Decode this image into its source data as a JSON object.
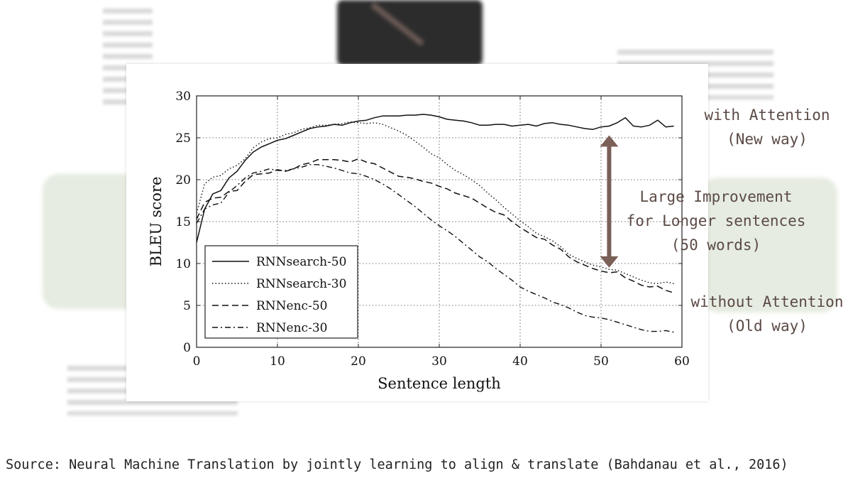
{
  "slide": {
    "annotations": {
      "with_attention": [
        "with Attention",
        "(New way)"
      ],
      "improvement": [
        "Large Improvement",
        "for Longer sentences",
        "(50 words)"
      ],
      "without_attention": [
        "without Attention",
        "(Old way)"
      ]
    },
    "source": "Source: Neural Machine Translation by jointly learning to align & translate (Bahdanau et al., 2016)",
    "colors": {
      "annotation": "#5b4a45",
      "arrow": "#7b6058",
      "panel_bg": "#ffffff"
    }
  },
  "chart_data": {
    "type": "line",
    "xlabel": "Sentence length",
    "ylabel": "BLEU score",
    "xlim": [
      0,
      60
    ],
    "ylim": [
      0,
      30
    ],
    "xticks": [
      0,
      10,
      20,
      30,
      40,
      50,
      60
    ],
    "yticks": [
      0,
      5,
      10,
      15,
      20,
      25,
      30
    ],
    "grid": true,
    "legend_position": "lower-left",
    "series": [
      {
        "name": "RNNsearch-50",
        "style": "solid",
        "x": [
          0,
          1,
          2,
          3,
          4,
          5,
          6,
          7,
          8,
          9,
          10,
          11,
          12,
          13,
          14,
          15,
          16,
          17,
          18,
          19,
          20,
          21,
          22,
          23,
          24,
          25,
          26,
          27,
          28,
          29,
          30,
          31,
          32,
          33,
          34,
          35,
          36,
          37,
          38,
          39,
          40,
          41,
          42,
          43,
          44,
          45,
          46,
          47,
          48,
          49,
          50,
          51,
          52,
          53,
          54,
          55,
          56,
          57,
          58,
          59
        ],
        "y": [
          12.5,
          16.5,
          18.3,
          18.7,
          20.2,
          21.0,
          22.3,
          23.3,
          23.9,
          24.3,
          24.7,
          24.9,
          25.3,
          25.7,
          26.1,
          26.3,
          26.4,
          26.6,
          26.5,
          26.8,
          27.0,
          27.1,
          27.4,
          27.6,
          27.6,
          27.6,
          27.7,
          27.7,
          27.8,
          27.7,
          27.5,
          27.2,
          27.1,
          27.0,
          26.8,
          26.5,
          26.5,
          26.6,
          26.6,
          26.4,
          26.5,
          26.6,
          26.4,
          26.7,
          26.8,
          26.6,
          26.5,
          26.3,
          26.1,
          26.0,
          26.3,
          26.4,
          26.8,
          27.4,
          26.4,
          26.3,
          26.5,
          27.1,
          26.3,
          26.4
        ]
      },
      {
        "name": "RNNsearch-30",
        "style": "dotted",
        "x": [
          0,
          1,
          2,
          3,
          4,
          5,
          6,
          7,
          8,
          9,
          10,
          11,
          12,
          13,
          14,
          15,
          16,
          17,
          18,
          19,
          20,
          21,
          22,
          23,
          24,
          25,
          26,
          27,
          28,
          29,
          30,
          31,
          32,
          33,
          34,
          35,
          36,
          37,
          38,
          39,
          40,
          41,
          42,
          43,
          44,
          45,
          46,
          47,
          48,
          49,
          50,
          51,
          52,
          53,
          54,
          55,
          56,
          57,
          58,
          59
        ],
        "y": [
          16.0,
          19.5,
          20.3,
          20.5,
          21.3,
          21.7,
          22.5,
          23.8,
          24.5,
          24.9,
          25.0,
          25.4,
          25.6,
          26.0,
          26.2,
          26.5,
          26.5,
          26.6,
          26.7,
          26.9,
          26.8,
          26.7,
          26.8,
          26.6,
          26.2,
          25.8,
          25.3,
          24.6,
          23.9,
          23.1,
          22.6,
          21.8,
          21.1,
          20.6,
          20.0,
          19.3,
          18.4,
          17.6,
          16.7,
          15.9,
          15.1,
          14.4,
          13.6,
          13.2,
          12.7,
          12.0,
          11.1,
          10.6,
          10.2,
          9.8,
          9.6,
          9.3,
          9.2,
          8.8,
          8.4,
          8.0,
          7.7,
          7.6,
          7.8,
          7.6
        ]
      },
      {
        "name": "RNNenc-50",
        "style": "dashed",
        "x": [
          0,
          1,
          2,
          3,
          4,
          5,
          6,
          7,
          8,
          9,
          10,
          11,
          12,
          13,
          14,
          15,
          16,
          17,
          18,
          19,
          20,
          21,
          22,
          23,
          24,
          25,
          26,
          27,
          28,
          29,
          30,
          31,
          32,
          33,
          34,
          35,
          36,
          37,
          38,
          39,
          40,
          41,
          42,
          43,
          44,
          45,
          46,
          47,
          48,
          49,
          50,
          51,
          52,
          53,
          54,
          55,
          56,
          57,
          58,
          59
        ],
        "y": [
          15.3,
          17.3,
          17.8,
          17.9,
          18.6,
          18.7,
          19.8,
          20.6,
          20.7,
          20.8,
          21.2,
          21.0,
          21.3,
          21.8,
          22.0,
          22.4,
          22.4,
          22.4,
          22.3,
          22.1,
          22.5,
          22.1,
          21.9,
          21.4,
          20.9,
          20.4,
          20.3,
          20.1,
          19.8,
          19.6,
          19.2,
          18.9,
          18.4,
          18.1,
          17.8,
          17.2,
          16.6,
          16.1,
          15.8,
          15.0,
          14.3,
          13.7,
          13.1,
          12.9,
          12.2,
          11.7,
          10.8,
          10.2,
          9.8,
          9.4,
          9.1,
          8.9,
          9.0,
          8.3,
          7.9,
          7.4,
          7.2,
          7.3,
          6.8,
          6.5
        ]
      },
      {
        "name": "RNNenc-30",
        "style": "dashdot",
        "x": [
          0,
          1,
          2,
          3,
          4,
          5,
          6,
          7,
          8,
          9,
          10,
          11,
          12,
          13,
          14,
          15,
          16,
          17,
          18,
          19,
          20,
          21,
          22,
          23,
          24,
          25,
          26,
          27,
          28,
          29,
          30,
          31,
          32,
          33,
          34,
          35,
          36,
          37,
          38,
          39,
          40,
          41,
          42,
          43,
          44,
          45,
          46,
          47,
          48,
          49,
          50,
          51,
          52,
          53,
          54,
          55,
          56,
          57,
          58,
          59
        ],
        "y": [
          14.8,
          16.5,
          17.0,
          17.2,
          18.5,
          19.3,
          20.2,
          20.8,
          21.0,
          21.3,
          21.1,
          21.1,
          21.3,
          21.5,
          21.8,
          21.8,
          21.6,
          21.4,
          21.1,
          20.8,
          20.7,
          20.4,
          20.0,
          19.5,
          18.9,
          18.2,
          17.5,
          16.8,
          16.0,
          15.2,
          14.5,
          13.9,
          13.2,
          12.4,
          11.6,
          10.8,
          10.2,
          9.4,
          8.7,
          8.0,
          7.2,
          6.7,
          6.3,
          5.9,
          5.4,
          5.1,
          4.7,
          4.2,
          3.8,
          3.6,
          3.5,
          3.3,
          3.0,
          2.7,
          2.4,
          2.1,
          1.9,
          1.9,
          2.0,
          1.8
        ]
      }
    ],
    "annotation_arrow": {
      "x": 51,
      "y_from": 9.5,
      "y_to": 25.3
    }
  }
}
